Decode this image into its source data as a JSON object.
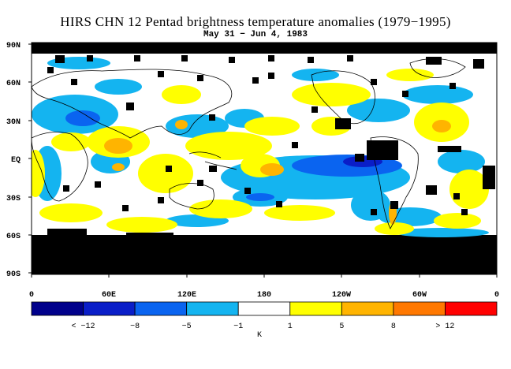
{
  "title": "HIRS CHN 12 Pentad brightness temperature anomalies (1979−1995)",
  "subtitle": "May 31 − Jun 4, 1983",
  "lat_labels": [
    "90N",
    "60N",
    "30N",
    "EQ",
    "30S",
    "60S",
    "90S"
  ],
  "lon_labels": [
    "0",
    "60E",
    "120E",
    "180",
    "120W",
    "60W",
    "0"
  ],
  "colorbar": {
    "unit": "K",
    "labels": [
      "< −12",
      "−8",
      "−5",
      "−1",
      "1",
      "5",
      "8",
      "> 12"
    ],
    "colors": [
      "#00008b",
      "#0a1ec8",
      "#0a64f0",
      "#14b4f0",
      "#ffffff",
      "#ffff00",
      "#ffb400",
      "#ff7800",
      "#ff0000"
    ]
  },
  "colors": {
    "no_data": "#000000",
    "land_outline": "#000000"
  }
}
